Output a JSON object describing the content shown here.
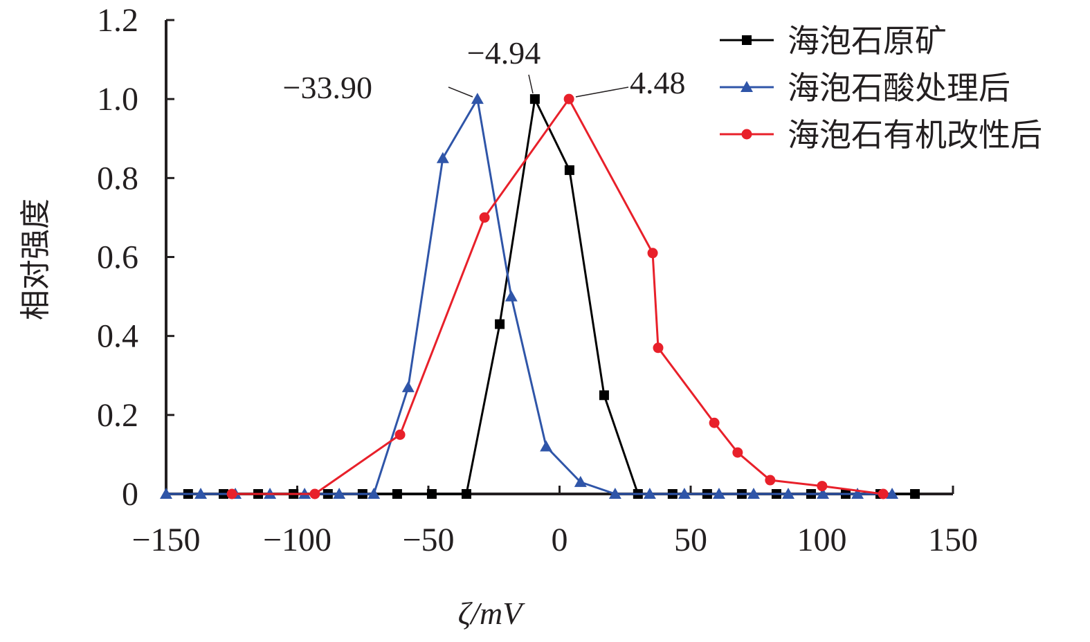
{
  "chart_data": {
    "type": "line",
    "title": "",
    "xlabel": "ζ/mV",
    "ylabel": "相对强度",
    "xlim": [
      -150,
      150
    ],
    "ylim": [
      0,
      1.2
    ],
    "xticks": [
      -150,
      -100,
      -50,
      0,
      50,
      100,
      150
    ],
    "xtick_labels": [
      "−150",
      "−100",
      "−50",
      "0",
      "50",
      "100",
      "150"
    ],
    "yticks": [
      0,
      0.2,
      0.4,
      0.6,
      0.8,
      1.0,
      1.2
    ],
    "ytick_labels": [
      "0",
      "0.2",
      "0.4",
      "0.6",
      "0.8",
      "1.0",
      "1.2"
    ],
    "grid": false,
    "legend_position": "top-right",
    "series": [
      {
        "name": "海泡石原矿",
        "color": "#000000",
        "marker": "square",
        "x": [
          -141.6,
          -128.1,
          -114.9,
          -101.4,
          -88.3,
          -75.1,
          -61.9,
          -48.7,
          -35.5,
          -22.8,
          -9.4,
          3.8,
          17.0,
          29.9,
          43.1,
          56.3,
          69.5,
          82.7,
          95.9,
          109.1,
          122.3,
          135.5
        ],
        "y": [
          0,
          0,
          0,
          0,
          0,
          0,
          0,
          0,
          0,
          0.43,
          1.0,
          0.82,
          0.25,
          0,
          0,
          0,
          0,
          0,
          0,
          0,
          0,
          0
        ]
      },
      {
        "name": "海泡石酸处理后",
        "color": "#2f55a8",
        "marker": "triangle",
        "x": [
          -150,
          -136.8,
          -123.6,
          -110.4,
          -97.2,
          -84.0,
          -70.8,
          -57.7,
          -44.5,
          -31.3,
          -18.4,
          -5.1,
          8.0,
          21.2,
          34.4,
          47.6,
          60.8,
          74.0,
          87.2,
          100.4,
          113.6,
          126.8
        ],
        "y": [
          0,
          0,
          0,
          0,
          0,
          0,
          0,
          0.27,
          0.85,
          1.0,
          0.5,
          0.12,
          0.03,
          0,
          0,
          0,
          0,
          0,
          0,
          0,
          0,
          0
        ]
      },
      {
        "name": "海泡石有机改性后",
        "color": "#e8202a",
        "marker": "circle",
        "x": [
          -124.9,
          -93.3,
          -60.8,
          -28.6,
          3.6,
          35.5,
          37.6,
          59.0,
          67.9,
          80.3,
          100.1,
          123.4
        ],
        "y": [
          0,
          0,
          0.15,
          0.7,
          1.0,
          0.61,
          0.37,
          0.18,
          0.105,
          0.035,
          0.02,
          0
        ]
      }
    ],
    "annotations": [
      {
        "text": "−33.90",
        "x": -33.9,
        "y": 1.0
      },
      {
        "text": "−4.94",
        "x": -4.94,
        "y": 1.0
      },
      {
        "text": "4.48",
        "x": 4.48,
        "y": 1.0
      }
    ]
  }
}
